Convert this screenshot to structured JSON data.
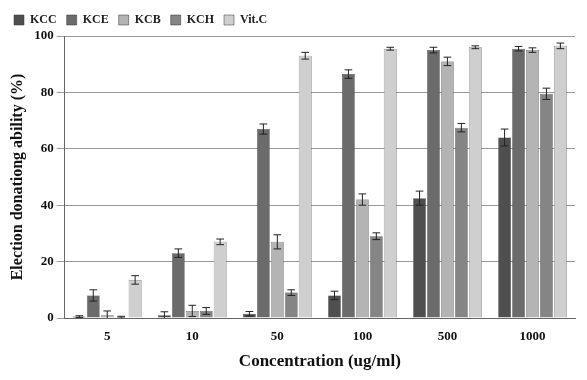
{
  "chart_data": {
    "type": "bar",
    "x_label": "Concentration (ug/ml)",
    "y_label": "Election donationg ability (%)",
    "categories": [
      "5",
      "10",
      "50",
      "100",
      "500",
      "1000"
    ],
    "series": [
      {
        "name": "KCC",
        "color": "#4f4f4f",
        "values": [
          0.5,
          1,
          1.5,
          8,
          42.5,
          64
        ],
        "errors": [
          0.3,
          1.2,
          0.8,
          1.5,
          2.5,
          3
        ]
      },
      {
        "name": "KCE",
        "color": "#6b6b6b",
        "values": [
          8,
          23,
          67,
          86.5,
          95,
          95.5
        ],
        "errors": [
          2,
          1.5,
          1.8,
          1.5,
          1,
          0.8
        ]
      },
      {
        "name": "KCB",
        "color": "#b4b4b4",
        "values": [
          1,
          2.5,
          27,
          42,
          91,
          95
        ],
        "errors": [
          1.5,
          2,
          2.5,
          2,
          1.5,
          0.8
        ]
      },
      {
        "name": "KCH",
        "color": "#858585",
        "values": [
          0.3,
          2.5,
          9,
          29,
          67.5,
          79.5
        ],
        "errors": [
          0.3,
          1.2,
          1,
          1.2,
          1.5,
          2
        ]
      },
      {
        "name": "Vit.C",
        "color": "#cfcfcf",
        "values": [
          13.5,
          27,
          93,
          95.5,
          96,
          96.5
        ],
        "errors": [
          1.5,
          1,
          1.2,
          0.5,
          0.5,
          1
        ]
      }
    ],
    "ylim": [
      0,
      100
    ],
    "yticks": [
      0,
      20,
      40,
      60,
      80,
      100
    ],
    "grid": true,
    "legend": "upper left"
  }
}
